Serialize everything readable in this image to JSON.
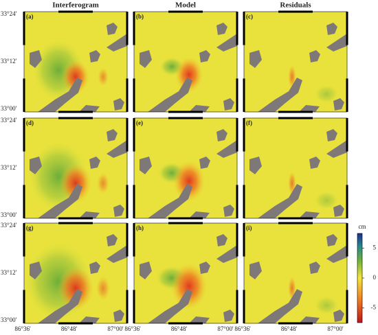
{
  "columns": [
    "Interferogram",
    "Model",
    "Residuals"
  ],
  "panels": [
    "(a)",
    "(b)",
    "(c)",
    "(d)",
    "(e)",
    "(f)",
    "(g)",
    "(h)",
    "(i)"
  ],
  "lat_ticks": [
    "33°24'",
    "33°12'",
    "33°00'"
  ],
  "lon_ticks": [
    "86°36'",
    "86°48'",
    "87°00'"
  ],
  "colorbar": {
    "unit": "cm",
    "range": [
      -7.5,
      7.5
    ],
    "ticks": [
      5,
      0,
      -5
    ]
  }
}
